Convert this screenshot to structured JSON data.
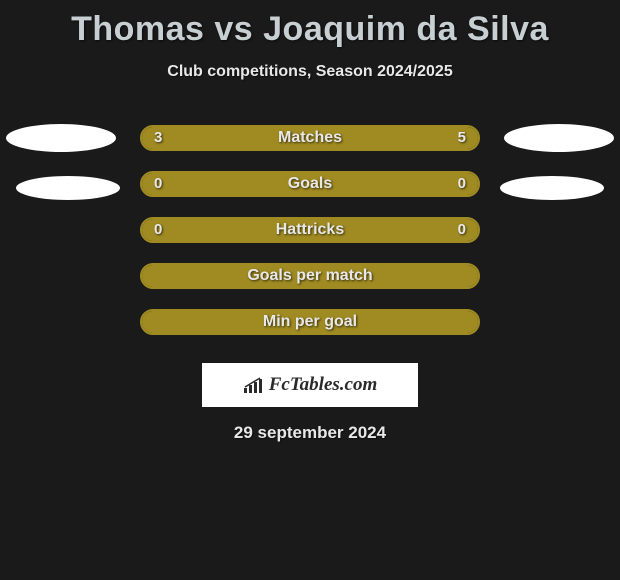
{
  "title": "Thomas vs Joaquim da Silva",
  "subtitle": "Club competitions, Season 2024/2025",
  "date": "29 september 2024",
  "brand": "FcTables.com",
  "colors": {
    "left_fill": "#a08b22",
    "right_fill": "#a08b22",
    "bar_border": "#a08b22",
    "empty_fill": "#1a1a1a",
    "text": "#e8e8e8",
    "title": "#c7cfd2",
    "background": "#1a1a1a",
    "badge": "#ffffff"
  },
  "rows": [
    {
      "label": "Matches",
      "left": "3",
      "right": "5",
      "left_pct": 37.5,
      "right_pct": 62.5,
      "style": "split"
    },
    {
      "label": "Goals",
      "left": "0",
      "right": "0",
      "left_pct": 50,
      "right_pct": 50,
      "style": "split"
    },
    {
      "label": "Hattricks",
      "left": "0",
      "right": "0",
      "left_pct": 50,
      "right_pct": 50,
      "style": "split"
    },
    {
      "label": "Goals per match",
      "left": "",
      "right": "",
      "left_pct": 0,
      "right_pct": 0,
      "style": "outline"
    },
    {
      "label": "Min per goal",
      "left": "",
      "right": "",
      "left_pct": 0,
      "right_pct": 0,
      "style": "outline"
    }
  ]
}
